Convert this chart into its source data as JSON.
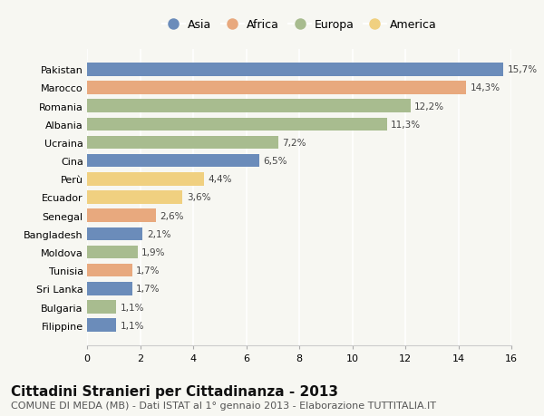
{
  "countries": [
    "Pakistan",
    "Marocco",
    "Romania",
    "Albania",
    "Ucraina",
    "Cina",
    "Perù",
    "Ecuador",
    "Senegal",
    "Bangladesh",
    "Moldova",
    "Tunisia",
    "Sri Lanka",
    "Bulgaria",
    "Filippine"
  ],
  "values": [
    15.7,
    14.3,
    12.2,
    11.3,
    7.2,
    6.5,
    4.4,
    3.6,
    2.6,
    2.1,
    1.9,
    1.7,
    1.7,
    1.1,
    1.1
  ],
  "labels": [
    "15,7%",
    "14,3%",
    "12,2%",
    "11,3%",
    "7,2%",
    "6,5%",
    "4,4%",
    "3,6%",
    "2,6%",
    "2,1%",
    "1,9%",
    "1,7%",
    "1,7%",
    "1,1%",
    "1,1%"
  ],
  "continents": [
    "Asia",
    "Africa",
    "Europa",
    "Europa",
    "Europa",
    "Asia",
    "America",
    "America",
    "Africa",
    "Asia",
    "Europa",
    "Africa",
    "Asia",
    "Europa",
    "Asia"
  ],
  "continent_colors": {
    "Asia": "#6b8cba",
    "Africa": "#e8a97e",
    "Europa": "#a8bc8f",
    "America": "#f0d080"
  },
  "legend_order": [
    "Asia",
    "Africa",
    "Europa",
    "America"
  ],
  "title": "Cittadini Stranieri per Cittadinanza - 2013",
  "subtitle": "COMUNE DI MEDA (MB) - Dati ISTAT al 1° gennaio 2013 - Elaborazione TUTTITALIA.IT",
  "xlim": [
    0,
    16
  ],
  "xticks": [
    0,
    2,
    4,
    6,
    8,
    10,
    12,
    14,
    16
  ],
  "background_color": "#f7f7f2",
  "title_fontsize": 11,
  "subtitle_fontsize": 8,
  "bar_height": 0.72,
  "label_fontsize": 7.5,
  "ytick_fontsize": 8,
  "xtick_fontsize": 8
}
